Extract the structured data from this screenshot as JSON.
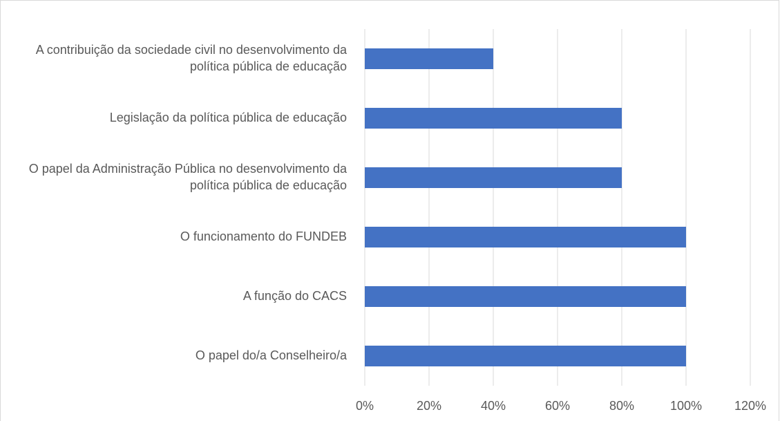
{
  "chart_data": {
    "type": "bar",
    "orientation": "horizontal",
    "categories": [
      "A contribuição da sociedade civil no desenvolvimento da política pública de educação",
      "Legislação da política pública de educação",
      "O papel da Administração Pública no desenvolvimento da política pública de educação",
      "O funcionamento do FUNDEB",
      "A função do CACS",
      "O papel do/a Conselheiro/a"
    ],
    "values": [
      40,
      80,
      80,
      100,
      100,
      100
    ],
    "color": "#4472c4",
    "xlim": [
      0,
      120
    ],
    "xticks": [
      {
        "value": 0,
        "label": "0%"
      },
      {
        "value": 20,
        "label": "20%"
      },
      {
        "value": 40,
        "label": "40%"
      },
      {
        "value": 60,
        "label": "60%"
      },
      {
        "value": 80,
        "label": "80%"
      },
      {
        "value": 100,
        "label": "100%"
      },
      {
        "value": 120,
        "label": "120%"
      }
    ],
    "grid": true
  }
}
